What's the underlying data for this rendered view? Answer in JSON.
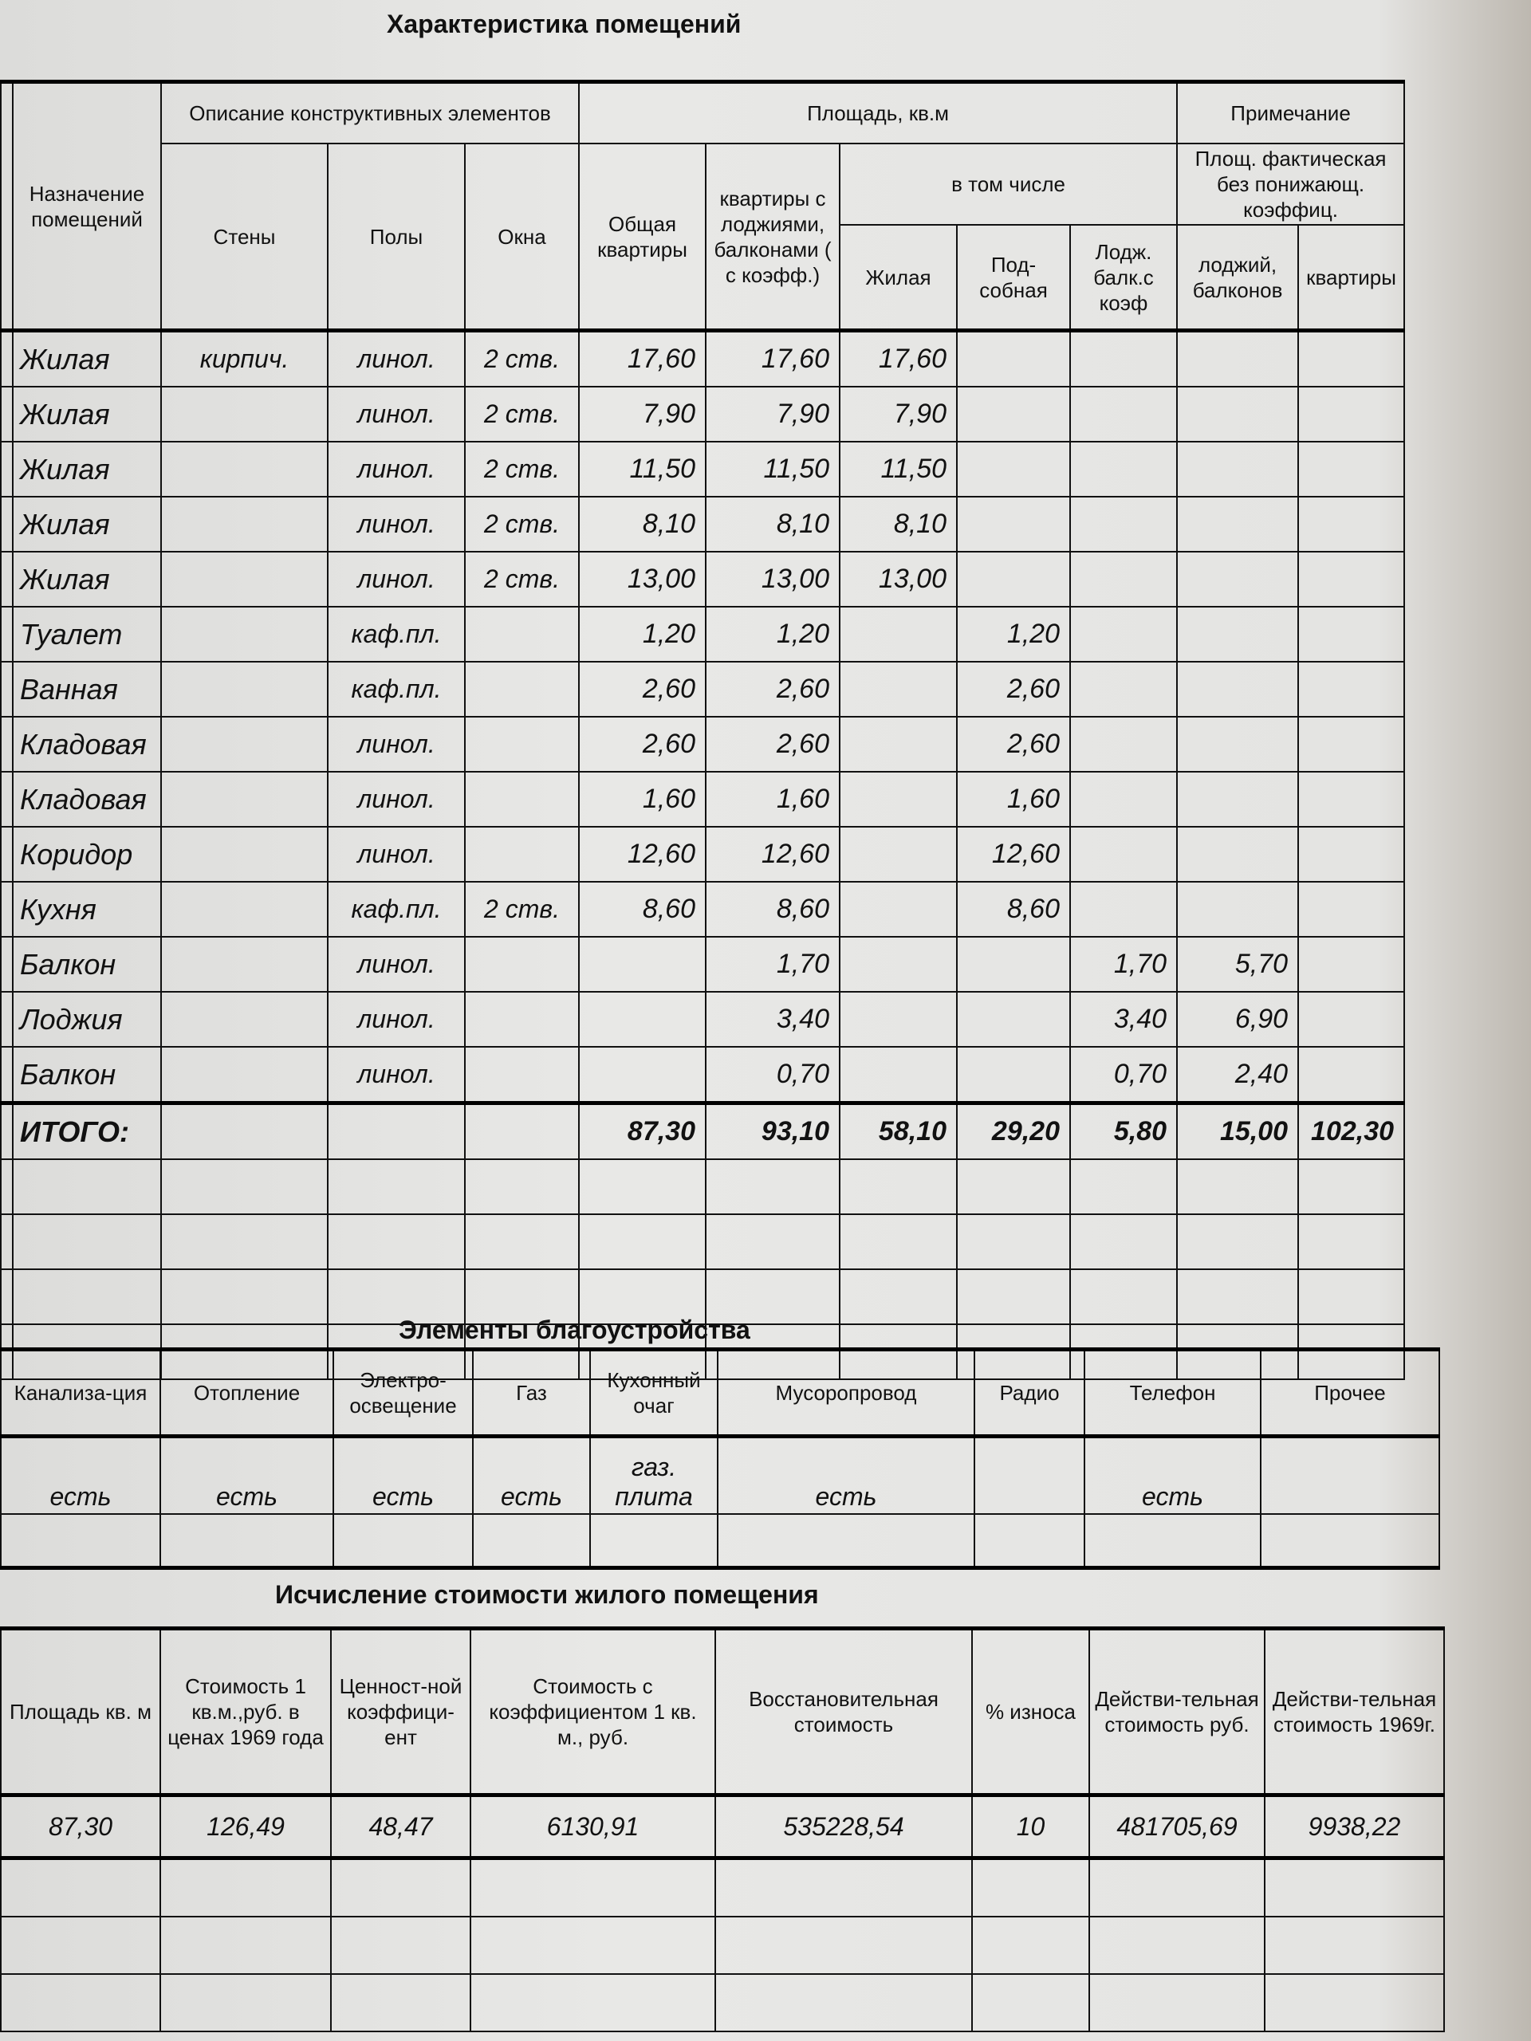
{
  "section1": {
    "title": "Характеристика помещений",
    "headers": {
      "purpose": "Назначение помещений",
      "construct": "Описание конструктивных элементов",
      "walls": "Стены",
      "floors": "Полы",
      "windows": "Окна",
      "area": "Площадь, кв.м",
      "total": "Общая квартиры",
      "with_loggias": "квартиры с лоджиями, балконами ( с коэфф.)",
      "including": "в том числе",
      "living": "Жилая",
      "auxiliary": "Под-собная",
      "loggia_coef": "Лодж. балк.с коэф",
      "note": "Примечание",
      "actual_area": "Площ. фактическая без понижающ. коэффиц.",
      "loggias_balconies": "лоджий, балконов",
      "apartment": "квартиры"
    },
    "rows": [
      {
        "name": "Жилая",
        "walls": "кирпич.",
        "floors": "линол.",
        "windows": "2 ств.",
        "total": "17,60",
        "with_loggias": "17,60",
        "living": "17,60",
        "aux": "",
        "loggia": "",
        "actual_loggia": "",
        "actual_apt": ""
      },
      {
        "name": "Жилая",
        "walls": "",
        "floors": "линол.",
        "windows": "2 ств.",
        "total": "7,90",
        "with_loggias": "7,90",
        "living": "7,90",
        "aux": "",
        "loggia": "",
        "actual_loggia": "",
        "actual_apt": ""
      },
      {
        "name": "Жилая",
        "walls": "",
        "floors": "линол.",
        "windows": "2 ств.",
        "total": "11,50",
        "with_loggias": "11,50",
        "living": "11,50",
        "aux": "",
        "loggia": "",
        "actual_loggia": "",
        "actual_apt": ""
      },
      {
        "name": "Жилая",
        "walls": "",
        "floors": "линол.",
        "windows": "2 ств.",
        "total": "8,10",
        "with_loggias": "8,10",
        "living": "8,10",
        "aux": "",
        "loggia": "",
        "actual_loggia": "",
        "actual_apt": ""
      },
      {
        "name": "Жилая",
        "walls": "",
        "floors": "линол.",
        "windows": "2 ств.",
        "total": "13,00",
        "with_loggias": "13,00",
        "living": "13,00",
        "aux": "",
        "loggia": "",
        "actual_loggia": "",
        "actual_apt": ""
      },
      {
        "name": "Туалет",
        "walls": "",
        "floors": "каф.пл.",
        "windows": "",
        "total": "1,20",
        "with_loggias": "1,20",
        "living": "",
        "aux": "1,20",
        "loggia": "",
        "actual_loggia": "",
        "actual_apt": ""
      },
      {
        "name": "Ванная",
        "walls": "",
        "floors": "каф.пл.",
        "windows": "",
        "total": "2,60",
        "with_loggias": "2,60",
        "living": "",
        "aux": "2,60",
        "loggia": "",
        "actual_loggia": "",
        "actual_apt": ""
      },
      {
        "name": "Кладовая",
        "walls": "",
        "floors": "линол.",
        "windows": "",
        "total": "2,60",
        "with_loggias": "2,60",
        "living": "",
        "aux": "2,60",
        "loggia": "",
        "actual_loggia": "",
        "actual_apt": ""
      },
      {
        "name": "Кладовая",
        "walls": "",
        "floors": "линол.",
        "windows": "",
        "total": "1,60",
        "with_loggias": "1,60",
        "living": "",
        "aux": "1,60",
        "loggia": "",
        "actual_loggia": "",
        "actual_apt": ""
      },
      {
        "name": "Коридор",
        "walls": "",
        "floors": "линол.",
        "windows": "",
        "total": "12,60",
        "with_loggias": "12,60",
        "living": "",
        "aux": "12,60",
        "loggia": "",
        "actual_loggia": "",
        "actual_apt": ""
      },
      {
        "name": "Кухня",
        "walls": "",
        "floors": "каф.пл.",
        "windows": "2 ств.",
        "total": "8,60",
        "with_loggias": "8,60",
        "living": "",
        "aux": "8,60",
        "loggia": "",
        "actual_loggia": "",
        "actual_apt": ""
      },
      {
        "name": "Балкон",
        "walls": "",
        "floors": "линол.",
        "windows": "",
        "total": "",
        "with_loggias": "1,70",
        "living": "",
        "aux": "",
        "loggia": "1,70",
        "actual_loggia": "5,70",
        "actual_apt": ""
      },
      {
        "name": "Лоджия",
        "walls": "",
        "floors": "линол.",
        "windows": "",
        "total": "",
        "with_loggias": "3,40",
        "living": "",
        "aux": "",
        "loggia": "3,40",
        "actual_loggia": "6,90",
        "actual_apt": ""
      },
      {
        "name": "Балкон",
        "walls": "",
        "floors": "линол.",
        "windows": "",
        "total": "",
        "with_loggias": "0,70",
        "living": "",
        "aux": "",
        "loggia": "0,70",
        "actual_loggia": "2,40",
        "actual_apt": ""
      }
    ],
    "totals": {
      "label": "ИТОГО:",
      "total": "87,30",
      "with_loggias": "93,10",
      "living": "58,10",
      "aux": "29,20",
      "loggia": "5,80",
      "actual_loggia": "15,00",
      "actual_apt": "102,30"
    }
  },
  "section2": {
    "title": "Элементы благоустройства",
    "headers": [
      "Канализа-ция",
      "Отопление",
      "Электро-освещение",
      "Газ",
      "Кухонный очаг",
      "Мусоропровод",
      "Радио",
      "Телефон",
      "Прочее"
    ],
    "values": [
      "есть",
      "есть",
      "есть",
      "есть",
      "газ. плита",
      "есть",
      "",
      "есть",
      ""
    ]
  },
  "section3": {
    "title": "Исчисление стоимости  жилого помещения",
    "headers": [
      "Площадь кв. м",
      "Стоимость 1 кв.м.,руб. в ценах 1969 года",
      "Ценност-ной коэффици-ент",
      "Стоимость с коэффициентом 1 кв. м., руб.",
      "Восстановительная стоимость",
      "% износа",
      "Действи-тельная стоимость руб.",
      "Действи-тельная стоимость 1969г."
    ],
    "values": [
      "87,30",
      "126,49",
      "48,47",
      "6130,91",
      "535228,54",
      "10",
      "481705,69",
      "9938,22"
    ]
  }
}
